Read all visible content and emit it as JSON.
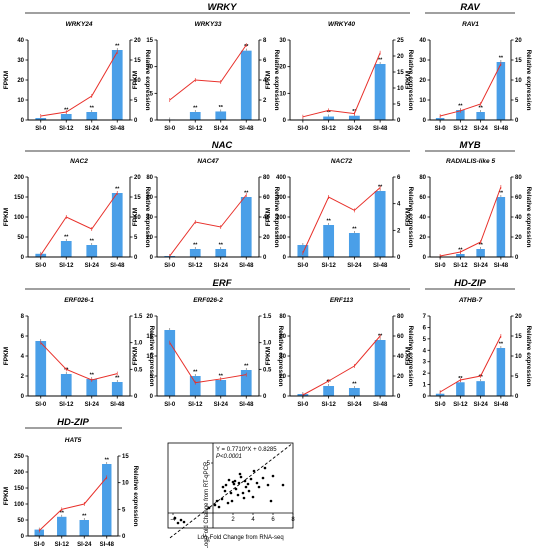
{
  "domain": "Chart",
  "colors": {
    "bar": "#4a9fe8",
    "line": "#e8302a",
    "axis": "#000000"
  },
  "chart_data": [
    {
      "type": "bar",
      "family": "WRKY",
      "gene": "WRKY24",
      "categories": [
        "SI-0",
        "SI-12",
        "SI-24",
        "SI-48"
      ],
      "series": [
        {
          "name": "FPKM",
          "values": [
            1,
            3,
            4,
            35
          ]
        },
        {
          "name": "Relative expression",
          "values": [
            1,
            2,
            6,
            17
          ]
        }
      ],
      "ylim": [
        0,
        40
      ],
      "yticks": [
        0,
        10,
        20,
        30,
        40
      ],
      "y2lim": [
        0,
        20
      ],
      "y2ticks": [
        0,
        5,
        10,
        15,
        20
      ],
      "significance": [
        "",
        "**",
        "**",
        "**"
      ],
      "ylabel": "FPKM",
      "y2label": "Relative expression"
    },
    {
      "type": "bar",
      "family": "",
      "gene": "WRKY33",
      "categories": [
        "SI-0",
        "SI-12",
        "SI-24",
        "SI-48"
      ],
      "series": [
        {
          "name": "FPKM",
          "values": [
            0.1,
            1.5,
            1.6,
            13
          ]
        },
        {
          "name": "Relative expression",
          "values": [
            2,
            4,
            3.8,
            7.5
          ]
        }
      ],
      "ylim": [
        0,
        15
      ],
      "yticks": [
        0,
        5,
        10,
        15
      ],
      "y2lim": [
        0,
        8
      ],
      "y2ticks": [
        0,
        2,
        4,
        6,
        8
      ],
      "significance": [
        "",
        "**",
        "**",
        "**"
      ],
      "ylabel": "FPKM",
      "y2label": "Relative expression"
    },
    {
      "type": "bar",
      "family": "",
      "gene": "WRKY40",
      "categories": [
        "SI-0",
        "SI-12",
        "SI-24",
        "SI-48"
      ],
      "series": [
        {
          "name": "FPKM",
          "values": [
            0.2,
            1.3,
            1.6,
            21
          ]
        },
        {
          "name": "Relative expression",
          "values": [
            1,
            3,
            2,
            21
          ]
        }
      ],
      "ylim": [
        0,
        30
      ],
      "yticks": [
        0,
        10,
        20,
        30
      ],
      "y2lim": [
        0,
        25
      ],
      "y2ticks": [
        0,
        5,
        10,
        15,
        20,
        25
      ],
      "significance": [
        "",
        "**",
        "**",
        "**"
      ],
      "ylabel": "FPKM",
      "y2label": "Relative expression"
    },
    {
      "type": "bar",
      "family": "RAV",
      "gene": "RAV1",
      "categories": [
        "SI-0",
        "SI-12",
        "SI-24",
        "SI-48"
      ],
      "series": [
        {
          "name": "FPKM",
          "values": [
            1,
            5,
            4,
            29
          ]
        },
        {
          "name": "Relative expression",
          "values": [
            1,
            2.3,
            4,
            14
          ]
        }
      ],
      "ylim": [
        0,
        40
      ],
      "yticks": [
        0,
        10,
        20,
        30,
        40
      ],
      "y2lim": [
        0,
        20
      ],
      "y2ticks": [
        0,
        5,
        10,
        15,
        20
      ],
      "significance": [
        "",
        "**",
        "**",
        "**"
      ],
      "ylabel": "FPKM",
      "y2label": "Relative expression"
    },
    {
      "type": "bar",
      "family": "NAC",
      "gene": "NAC2",
      "categories": [
        "SI-0",
        "SI-12",
        "SI-24",
        "SI-48"
      ],
      "series": [
        {
          "name": "FPKM",
          "values": [
            8,
            40,
            30,
            160
          ]
        },
        {
          "name": "Relative expression",
          "values": [
            0.5,
            10,
            7,
            16
          ]
        }
      ],
      "ylim": [
        0,
        200
      ],
      "yticks": [
        0,
        50,
        100,
        150,
        200
      ],
      "y2lim": [
        0,
        20
      ],
      "y2ticks": [
        0,
        5,
        10,
        15,
        20
      ],
      "significance": [
        "",
        "**",
        "**",
        "**"
      ],
      "ylabel": "FPKM",
      "y2label": "Relative expression"
    },
    {
      "type": "bar",
      "family": "",
      "gene": "NAC47",
      "categories": [
        "SI-0",
        "SI-12",
        "SI-24",
        "SI-48"
      ],
      "series": [
        {
          "name": "FPKM",
          "values": [
            1,
            8,
            8,
            60
          ]
        },
        {
          "name": "Relative expression",
          "values": [
            1,
            35,
            30,
            62
          ]
        }
      ],
      "ylim": [
        0,
        80
      ],
      "yticks": [
        0,
        20,
        40,
        60,
        80
      ],
      "y2lim": [
        0,
        80
      ],
      "y2ticks": [
        0,
        20,
        40,
        60,
        80
      ],
      "significance": [
        "",
        "**",
        "**",
        "**"
      ],
      "ylabel": "FPKM",
      "y2label": "Relative expression"
    },
    {
      "type": "bar",
      "family": "",
      "gene": "NAC72",
      "categories": [
        "SI-0",
        "SI-12",
        "SI-24",
        "SI-48"
      ],
      "series": [
        {
          "name": "FPKM",
          "values": [
            60,
            160,
            120,
            330
          ]
        },
        {
          "name": "Relative expression",
          "values": [
            0.3,
            4.5,
            3.5,
            5.2
          ]
        }
      ],
      "ylim": [
        0,
        400
      ],
      "yticks": [
        0,
        100,
        200,
        300,
        400
      ],
      "y2lim": [
        0,
        6
      ],
      "y2ticks": [
        0,
        2,
        4,
        6
      ],
      "significance": [
        "",
        "**",
        "**",
        "**"
      ],
      "ylabel": "FPKM",
      "y2label": "Relative expression"
    },
    {
      "type": "bar",
      "family": "MYB",
      "gene": "RADIALIS-like 5",
      "categories": [
        "SI-0",
        "SI-12",
        "SI-24",
        "SI-48"
      ],
      "series": [
        {
          "name": "FPKM",
          "values": [
            0.5,
            3,
            8,
            60
          ]
        },
        {
          "name": "Relative expression",
          "values": [
            1,
            5,
            15,
            70
          ]
        }
      ],
      "ylim": [
        0,
        80
      ],
      "yticks": [
        0,
        20,
        40,
        60,
        80
      ],
      "y2lim": [
        0,
        80
      ],
      "y2ticks": [
        0,
        20,
        40,
        60,
        80
      ],
      "significance": [
        "",
        "**",
        "**",
        "**"
      ],
      "ylabel": "FPKM",
      "y2label": "Relative expression"
    },
    {
      "type": "bar",
      "family": "",
      "gene": "ERF026-1",
      "categories": [
        "SI-0",
        "SI-12",
        "SI-24",
        "SI-48"
      ],
      "series": [
        {
          "name": "FPKM",
          "values": [
            5.5,
            2.2,
            1.7,
            1.4
          ]
        },
        {
          "name": "Relative expression",
          "values": [
            1,
            0.5,
            0.3,
            0.42
          ]
        }
      ],
      "ylim": [
        0,
        8
      ],
      "yticks": [
        0,
        2,
        4,
        6,
        8
      ],
      "y2lim": [
        0,
        1.5
      ],
      "y2ticks": [
        0,
        0.5,
        1.0,
        1.5
      ],
      "significance": [
        "",
        "**",
        "**",
        "**"
      ],
      "ylabel": "FPKM",
      "y2label": "Relative expression"
    },
    {
      "type": "bar",
      "family": "ERF",
      "gene": "ERF026-2",
      "categories": [
        "SI-0",
        "SI-12",
        "SI-24",
        "SI-48"
      ],
      "series": [
        {
          "name": "FPKM",
          "values": [
            16.5,
            5,
            4,
            6.5
          ]
        },
        {
          "name": "Relative expression",
          "values": [
            1,
            0.25,
            0.32,
            0.4
          ]
        }
      ],
      "ylim": [
        0,
        20
      ],
      "yticks": [
        0,
        5,
        10,
        15,
        20
      ],
      "y2lim": [
        0,
        1.5
      ],
      "y2ticks": [
        0,
        0.5,
        1.0,
        1.5
      ],
      "significance": [
        "",
        "**",
        "**",
        "**"
      ],
      "ylabel": "FPKM",
      "y2label": "Relative expression"
    },
    {
      "type": "bar",
      "family": "",
      "gene": "ERF113",
      "categories": [
        "SI-0",
        "SI-12",
        "SI-24",
        "SI-48"
      ],
      "series": [
        {
          "name": "FPKM",
          "values": [
            2,
            10,
            8,
            56
          ]
        },
        {
          "name": "Relative expression",
          "values": [
            1,
            15,
            30,
            60
          ]
        }
      ],
      "ylim": [
        0,
        80
      ],
      "yticks": [
        0,
        20,
        40,
        60,
        80
      ],
      "y2lim": [
        0,
        80
      ],
      "y2ticks": [
        0,
        20,
        40,
        60,
        80
      ],
      "significance": [
        "",
        "**",
        "**",
        "**"
      ],
      "ylabel": "FPKM",
      "y2label": "Relative expression"
    },
    {
      "type": "bar",
      "family": "HD-ZIP",
      "gene": "ATHB-7",
      "categories": [
        "SI-0",
        "SI-12",
        "SI-24",
        "SI-48"
      ],
      "series": [
        {
          "name": "FPKM",
          "values": [
            0.2,
            1.2,
            1.3,
            4.2
          ]
        },
        {
          "name": "Relative expression",
          "values": [
            1,
            4,
            5,
            15
          ]
        }
      ],
      "ylim": [
        0,
        7
      ],
      "yticks": [
        0,
        1,
        2,
        3,
        4,
        5,
        6,
        7
      ],
      "y2lim": [
        0,
        20
      ],
      "y2ticks": [
        0,
        5,
        10,
        15,
        20
      ],
      "significance": [
        "",
        "**",
        "**",
        "**"
      ],
      "ylabel": "FPKM",
      "y2label": "Relative expression"
    },
    {
      "type": "bar",
      "family": "HD-ZIP",
      "gene": "HAT5",
      "categories": [
        "SI-0",
        "SI-12",
        "SI-24",
        "SI-48"
      ],
      "series": [
        {
          "name": "FPKM",
          "values": [
            20,
            60,
            50,
            225
          ]
        },
        {
          "name": "Relative expression",
          "values": [
            1,
            5,
            6,
            11
          ]
        }
      ],
      "ylim": [
        0,
        250
      ],
      "yticks": [
        0,
        50,
        100,
        150,
        200,
        250
      ],
      "y2lim": [
        0,
        15
      ],
      "y2ticks": [
        0,
        5,
        10,
        15
      ],
      "significance": [
        "",
        "**",
        "**",
        "**"
      ],
      "ylabel": "FPKM",
      "y2label": "Relative expression"
    },
    {
      "type": "scatter",
      "xlabel": "Log₂Fold Change from RNA-seq",
      "ylabel": "Log₂Fold Change from RT-qPCR",
      "equation": "Y = 0.7710*X + 0.8285",
      "pvalue": "P<0.0001",
      "xlim": [
        -4.5,
        8
      ],
      "ylim": [
        -1.5,
        7
      ],
      "xticks": [
        -4,
        2,
        4,
        6,
        8
      ],
      "yticks": [
        5
      ],
      "points": [
        [
          -3.8,
          -0.5
        ],
        [
          -3.5,
          -1.0
        ],
        [
          -3.2,
          -0.7
        ],
        [
          -2.9,
          -0.9
        ],
        [
          -0.4,
          0.5
        ],
        [
          0.2,
          0.8
        ],
        [
          0.4,
          1.2
        ],
        [
          0.6,
          0.6
        ],
        [
          0.9,
          1.4
        ],
        [
          1.0,
          2.6
        ],
        [
          1.2,
          2.2
        ],
        [
          1.3,
          2.8
        ],
        [
          1.5,
          1.0
        ],
        [
          1.6,
          3.3
        ],
        [
          1.8,
          2.0
        ],
        [
          2.0,
          3.1
        ],
        [
          2.1,
          2.9
        ],
        [
          2.2,
          3.2
        ],
        [
          2.3,
          2.4
        ],
        [
          2.5,
          1.8
        ],
        [
          2.6,
          3.0
        ],
        [
          2.8,
          3.6
        ],
        [
          3.0,
          2.0
        ],
        [
          3.1,
          1.5
        ],
        [
          3.2,
          3.2
        ],
        [
          3.5,
          2.9
        ],
        [
          3.6,
          2.2
        ],
        [
          3.8,
          3.4
        ],
        [
          4.0,
          1.6
        ],
        [
          4.1,
          4.2
        ],
        [
          4.4,
          3.0
        ],
        [
          4.6,
          2.6
        ],
        [
          5.0,
          3.5
        ],
        [
          5.2,
          4.5
        ],
        [
          5.5,
          2.8
        ],
        [
          5.8,
          1.2
        ],
        [
          6.0,
          3.7
        ],
        [
          7.0,
          2.8
        ],
        [
          2.7,
          3.9
        ],
        [
          1.9,
          1.2
        ],
        [
          3.3,
          2.6
        ]
      ]
    }
  ]
}
